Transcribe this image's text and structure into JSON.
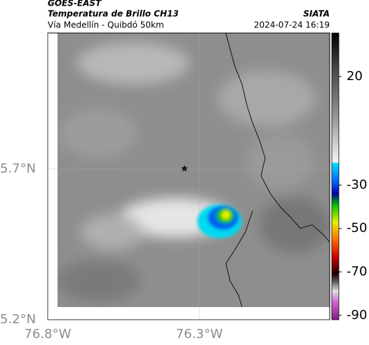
{
  "header": {
    "title": "GOES-EAST",
    "subtitle": "Temperatura de Brillo CH13",
    "route": "Vía Medellín - Quibdó 50km",
    "source": "SIATA",
    "timestamp": "2024-07-24 16:19"
  },
  "map": {
    "lon_range": [
      -76.8,
      -75.87
    ],
    "lat_range": [
      5.2,
      6.15
    ],
    "lon_ticks": [
      {
        "value": -76.8,
        "label": "76.8°W"
      },
      {
        "value": -76.3,
        "label": "76.3°W"
      }
    ],
    "lat_ticks": [
      {
        "value": 5.7,
        "label": "5.7°N"
      },
      {
        "value": 5.2,
        "label": "5.2°N"
      }
    ]
  },
  "colorbar": {
    "range": [
      40,
      -92
    ],
    "ticks": [
      20,
      -30,
      -50,
      -70,
      -90
    ]
  }
}
